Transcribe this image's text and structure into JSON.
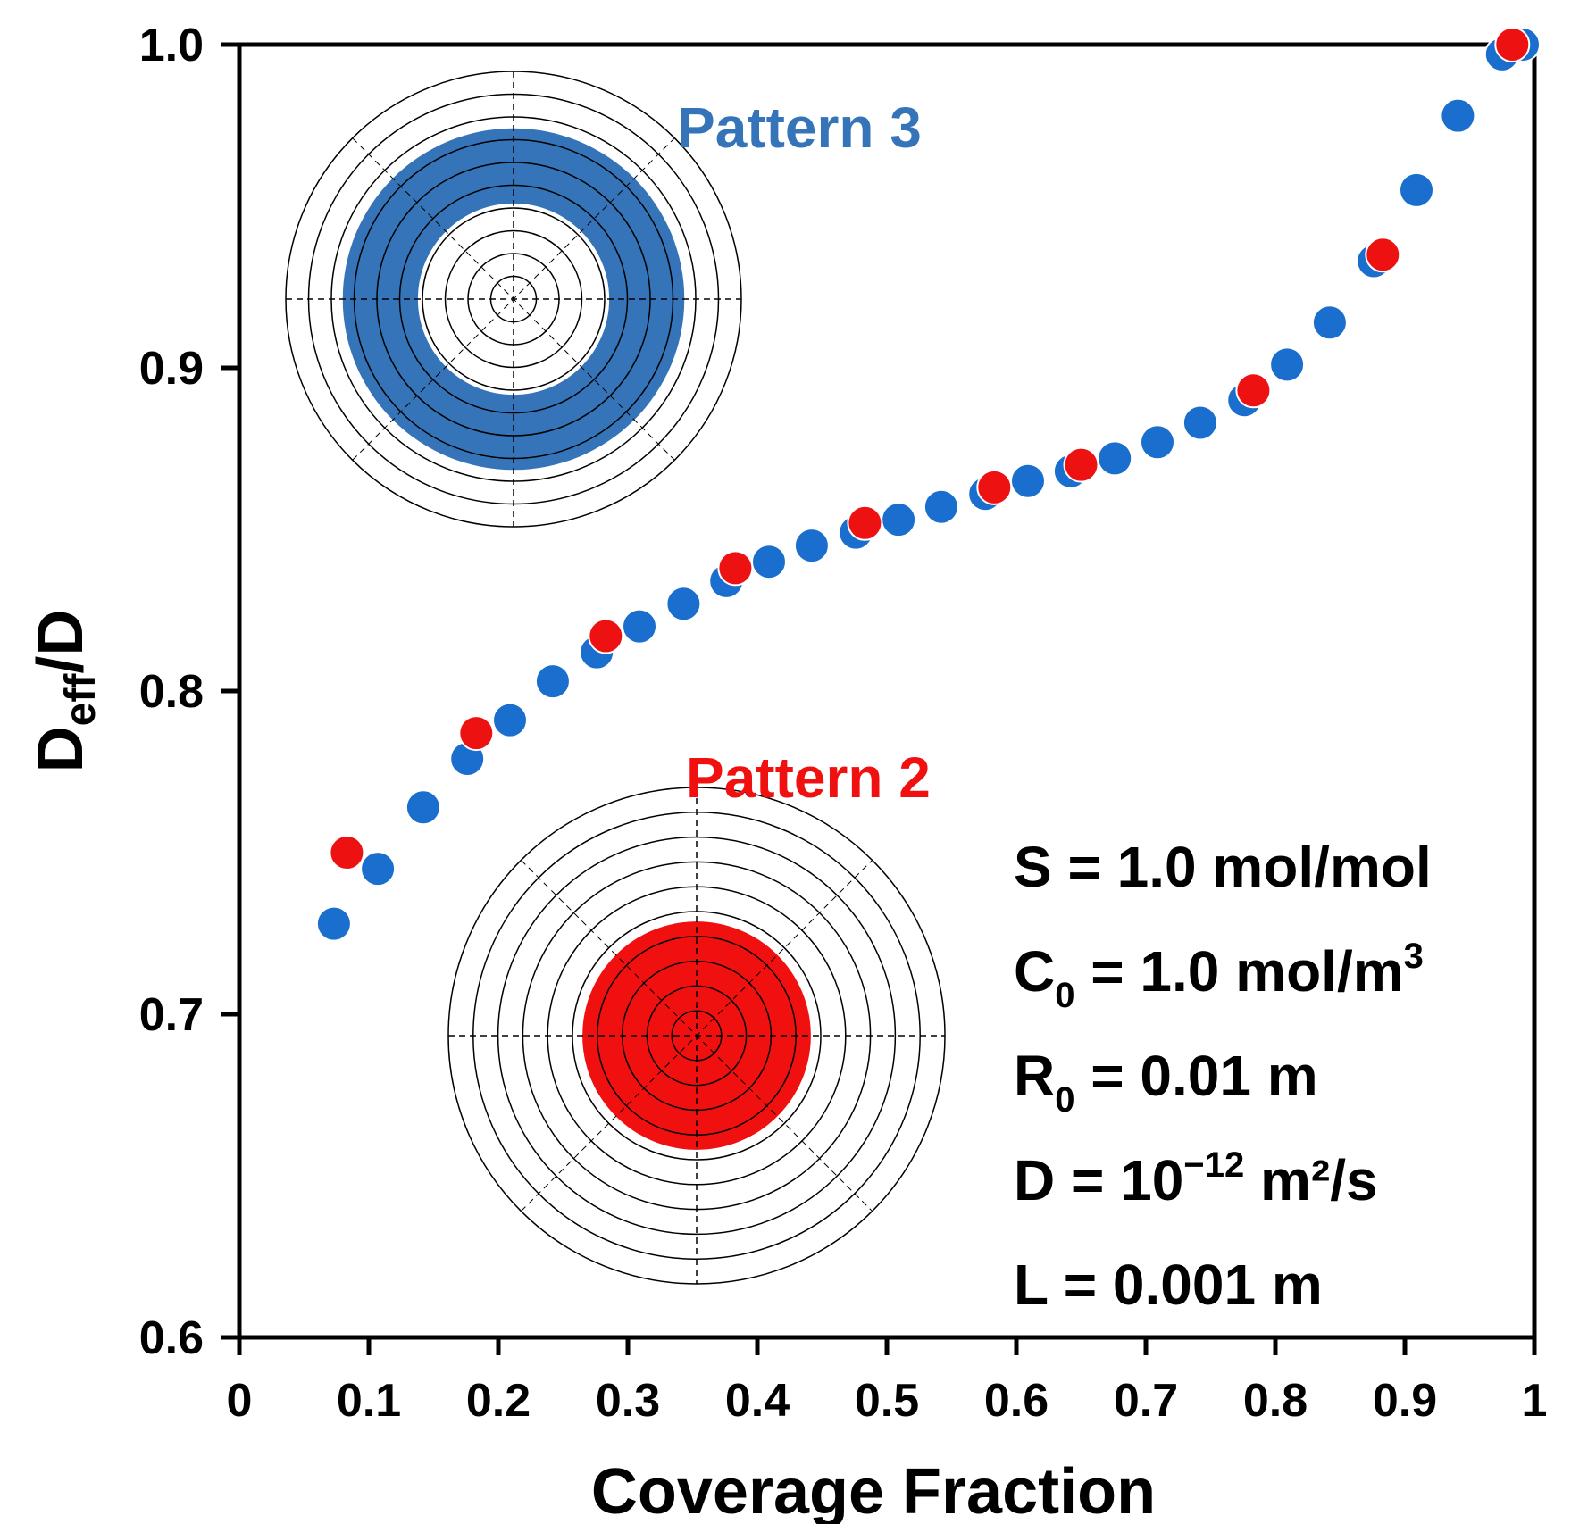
{
  "chart_data": {
    "type": "scatter",
    "xlabel": "Coverage Fraction",
    "ylabel_main": "D",
    "ylabel_sub": "eff",
    "ylabel_tail": "/D",
    "xlim": [
      0,
      1
    ],
    "ylim": [
      0.6,
      1.0
    ],
    "x_ticks": [
      "0",
      "0.1",
      "0.2",
      "0.3",
      "0.4",
      "0.5",
      "0.6",
      "0.7",
      "0.8",
      "0.9",
      "1"
    ],
    "y_ticks": [
      "0.6",
      "0.7",
      "0.8",
      "0.9",
      "1.0"
    ],
    "series": [
      {
        "name": "Pattern 3",
        "color": "#1a6fce",
        "x": [
          0.073,
          0.107,
          0.142,
          0.176,
          0.209,
          0.242,
          0.276,
          0.309,
          0.343,
          0.376,
          0.409,
          0.442,
          0.476,
          0.509,
          0.542,
          0.576,
          0.609,
          0.642,
          0.676,
          0.709,
          0.742,
          0.776,
          0.809,
          0.842,
          0.876,
          0.909,
          0.941,
          0.975,
          0.991
        ],
        "y": [
          0.728,
          0.745,
          0.764,
          0.779,
          0.791,
          0.803,
          0.812,
          0.82,
          0.827,
          0.834,
          0.84,
          0.845,
          0.849,
          0.853,
          0.857,
          0.861,
          0.865,
          0.868,
          0.872,
          0.877,
          0.883,
          0.89,
          0.901,
          0.914,
          0.933,
          0.955,
          0.978,
          0.997,
          1.0
        ]
      },
      {
        "name": "Pattern 2",
        "color": "#ee1111",
        "x": [
          0.083,
          0.183,
          0.283,
          0.383,
          0.483,
          0.583,
          0.65,
          0.783,
          0.883,
          0.983
        ],
        "y": [
          0.75,
          0.787,
          0.817,
          0.838,
          0.852,
          0.863,
          0.87,
          0.893,
          0.935,
          1.0
        ]
      }
    ],
    "annotations": {
      "pattern3_label": "Pattern 3",
      "pattern2_label": "Pattern 2",
      "pattern3_color": "#3574b8",
      "pattern2_color": "#f01010",
      "params": [
        {
          "pre": "S = 1.0 mol/mol",
          "sub": "",
          "mid": "",
          "sup": "",
          "post": ""
        },
        {
          "pre": "C",
          "sub": "0",
          "mid": " = 1.0 mol/m",
          "sup": "3",
          "post": ""
        },
        {
          "pre": "R",
          "sub": "0",
          "mid": " = 0.01 m",
          "sup": "",
          "post": ""
        },
        {
          "pre": "D = 10",
          "sub": "",
          "mid": "",
          "sup": "−12",
          "post": " m²/s"
        },
        {
          "pre": "L = 0.001 m",
          "sub": "",
          "mid": "",
          "sup": "",
          "post": ""
        }
      ]
    }
  }
}
